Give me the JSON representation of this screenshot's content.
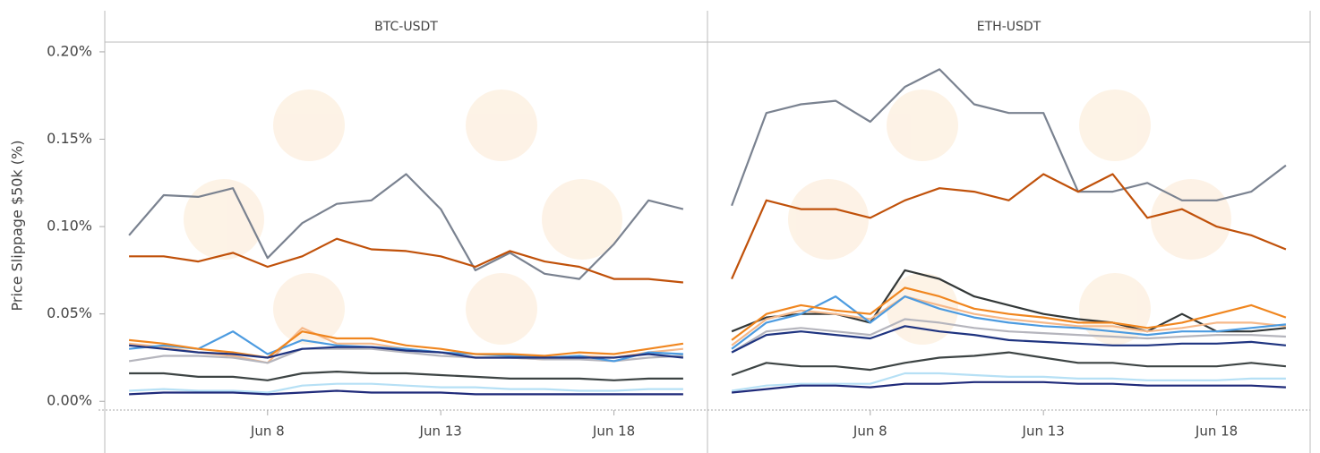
{
  "chart_data": [
    {
      "type": "line",
      "title": "BTC-USDT",
      "ylabel": "Price Slippage $50k (%)",
      "x": [
        4,
        5,
        6,
        7,
        8,
        9,
        10,
        11,
        12,
        13,
        14,
        15,
        16,
        17,
        18,
        19,
        20
      ],
      "xlim": [
        3.3,
        20.7
      ],
      "xticks": [
        {
          "value": 8,
          "label": "Jun 8"
        },
        {
          "value": 13,
          "label": "Jun 13"
        },
        {
          "value": 18,
          "label": "Jun 18"
        }
      ],
      "ylim": [
        -0.005,
        0.2056
      ],
      "yticks": [
        {
          "value": 0,
          "label": "0.00%"
        },
        {
          "value": 0.05,
          "label": "0.05%"
        },
        {
          "value": 0.1,
          "label": "0.10%"
        },
        {
          "value": 0.15,
          "label": "0.15%"
        },
        {
          "value": 0.2,
          "label": "0.20%"
        }
      ],
      "series": [
        {
          "color": "#7a8290",
          "values": [
            0.095,
            0.118,
            0.117,
            0.122,
            0.082,
            0.102,
            0.113,
            0.115,
            0.13,
            0.11,
            0.075,
            0.085,
            0.073,
            0.07,
            0.09,
            0.115,
            0.11
          ]
        },
        {
          "color": "#c0510a",
          "values": [
            0.083,
            0.083,
            0.08,
            0.085,
            0.077,
            0.083,
            0.093,
            0.087,
            0.086,
            0.083,
            0.077,
            0.086,
            0.08,
            0.077,
            0.07,
            0.07,
            0.068
          ]
        },
        {
          "color": "#f6b98a",
          "values": [
            0.033,
            0.031,
            0.028,
            0.026,
            0.022,
            0.042,
            0.033,
            0.033,
            0.03,
            0.028,
            0.025,
            0.025,
            0.024,
            0.026,
            0.025,
            0.028,
            0.03
          ]
        },
        {
          "color": "#b5b5bd",
          "values": [
            0.023,
            0.026,
            0.026,
            0.025,
            0.022,
            0.03,
            0.03,
            0.03,
            0.028,
            0.026,
            0.025,
            0.025,
            0.024,
            0.024,
            0.023,
            0.025,
            0.026
          ]
        },
        {
          "color": "#4c9be0",
          "values": [
            0.03,
            0.032,
            0.03,
            0.04,
            0.027,
            0.035,
            0.032,
            0.031,
            0.03,
            0.028,
            0.027,
            0.026,
            0.025,
            0.026,
            0.023,
            0.028,
            0.027
          ]
        },
        {
          "color": "#f0861f",
          "values": [
            0.035,
            0.033,
            0.03,
            0.028,
            0.025,
            0.04,
            0.036,
            0.036,
            0.032,
            0.03,
            0.027,
            0.027,
            0.026,
            0.028,
            0.027,
            0.03,
            0.033
          ]
        },
        {
          "color": "#1f3480",
          "values": [
            0.032,
            0.03,
            0.028,
            0.027,
            0.025,
            0.03,
            0.031,
            0.031,
            0.029,
            0.028,
            0.025,
            0.025,
            0.025,
            0.025,
            0.025,
            0.027,
            0.025
          ]
        },
        {
          "color": "#3d4444",
          "values": [
            0.016,
            0.016,
            0.014,
            0.014,
            0.012,
            0.016,
            0.017,
            0.016,
            0.016,
            0.015,
            0.014,
            0.013,
            0.013,
            0.013,
            0.012,
            0.013,
            0.013
          ]
        },
        {
          "color": "#b6e0f5",
          "values": [
            0.006,
            0.007,
            0.006,
            0.006,
            0.005,
            0.009,
            0.01,
            0.01,
            0.009,
            0.008,
            0.008,
            0.007,
            0.007,
            0.006,
            0.006,
            0.007,
            0.007
          ]
        },
        {
          "color": "#1f2a7a",
          "values": [
            0.004,
            0.005,
            0.005,
            0.005,
            0.004,
            0.005,
            0.006,
            0.005,
            0.005,
            0.005,
            0.004,
            0.004,
            0.004,
            0.004,
            0.004,
            0.004,
            0.004
          ]
        }
      ]
    },
    {
      "type": "line",
      "title": "ETH-USDT",
      "x": [
        4,
        5,
        6,
        7,
        8,
        9,
        10,
        11,
        12,
        13,
        14,
        15,
        16,
        17,
        18,
        19,
        20
      ],
      "xlim": [
        3.3,
        20.7
      ],
      "xticks": [
        {
          "value": 8,
          "label": "Jun 8"
        },
        {
          "value": 13,
          "label": "Jun 13"
        },
        {
          "value": 18,
          "label": "Jun 18"
        }
      ],
      "ylim": [
        -0.005,
        0.2056
      ],
      "series": [
        {
          "color": "#7a8290",
          "values": [
            0.112,
            0.165,
            0.17,
            0.172,
            0.16,
            0.18,
            0.19,
            0.17,
            0.165,
            0.165,
            0.12,
            0.12,
            0.125,
            0.115,
            0.115,
            0.12,
            0.135
          ]
        },
        {
          "color": "#c0510a",
          "values": [
            0.07,
            0.115,
            0.11,
            0.11,
            0.105,
            0.115,
            0.122,
            0.12,
            0.115,
            0.13,
            0.12,
            0.13,
            0.105,
            0.11,
            0.1,
            0.095,
            0.087
          ]
        },
        {
          "color": "#333838",
          "values": [
            0.04,
            0.048,
            0.05,
            0.05,
            0.045,
            0.075,
            0.07,
            0.06,
            0.055,
            0.05,
            0.047,
            0.045,
            0.04,
            0.05,
            0.04,
            0.04,
            0.042
          ]
        },
        {
          "color": "#f6b98a",
          "values": [
            0.032,
            0.047,
            0.052,
            0.05,
            0.047,
            0.06,
            0.055,
            0.05,
            0.047,
            0.045,
            0.043,
            0.043,
            0.04,
            0.042,
            0.045,
            0.045,
            0.043
          ]
        },
        {
          "color": "#b5b5bd",
          "values": [
            0.028,
            0.04,
            0.042,
            0.04,
            0.038,
            0.047,
            0.045,
            0.042,
            0.04,
            0.039,
            0.038,
            0.037,
            0.036,
            0.037,
            0.038,
            0.038,
            0.037
          ]
        },
        {
          "color": "#4c9be0",
          "values": [
            0.03,
            0.045,
            0.05,
            0.06,
            0.045,
            0.06,
            0.053,
            0.048,
            0.045,
            0.043,
            0.042,
            0.04,
            0.038,
            0.04,
            0.04,
            0.042,
            0.044
          ]
        },
        {
          "color": "#f0861f",
          "values": [
            0.035,
            0.05,
            0.055,
            0.052,
            0.05,
            0.065,
            0.06,
            0.053,
            0.05,
            0.048,
            0.045,
            0.045,
            0.042,
            0.045,
            0.05,
            0.055,
            0.048
          ]
        },
        {
          "color": "#1f3480",
          "values": [
            0.028,
            0.038,
            0.04,
            0.038,
            0.036,
            0.043,
            0.04,
            0.038,
            0.035,
            0.034,
            0.033,
            0.032,
            0.032,
            0.033,
            0.033,
            0.034,
            0.032
          ]
        },
        {
          "color": "#3d4444",
          "values": [
            0.015,
            0.022,
            0.02,
            0.02,
            0.018,
            0.022,
            0.025,
            0.026,
            0.028,
            0.025,
            0.022,
            0.022,
            0.02,
            0.02,
            0.02,
            0.022,
            0.02
          ]
        },
        {
          "color": "#b6e0f5",
          "values": [
            0.006,
            0.009,
            0.01,
            0.01,
            0.01,
            0.016,
            0.016,
            0.015,
            0.014,
            0.014,
            0.013,
            0.013,
            0.012,
            0.012,
            0.012,
            0.013,
            0.013
          ]
        },
        {
          "color": "#1f2a7a",
          "values": [
            0.005,
            0.007,
            0.009,
            0.009,
            0.008,
            0.01,
            0.01,
            0.011,
            0.011,
            0.011,
            0.01,
            0.01,
            0.009,
            0.009,
            0.009,
            0.009,
            0.008
          ]
        }
      ]
    }
  ]
}
